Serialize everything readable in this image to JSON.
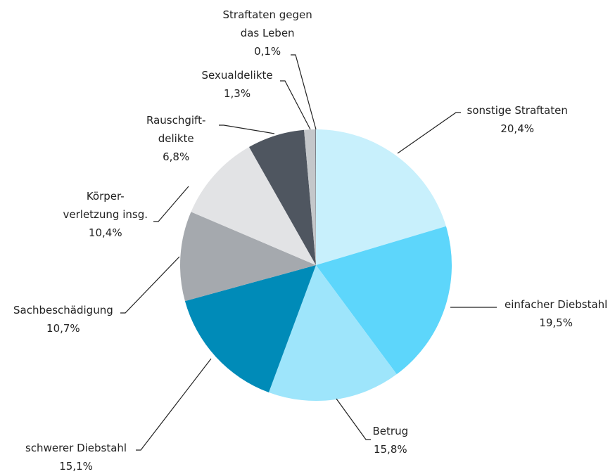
{
  "chart_data": {
    "type": "pie",
    "categories": [
      "sonstige Straftaten",
      "einfacher Diebstahl",
      "Betrug",
      "schwerer Diebstahl",
      "Sachbeschädigung",
      "Körper-\nverletzung insg.",
      "Rauschgift-\ndelikte",
      "Sexualdelikte",
      "Straftaten gegen\ndas Leben"
    ],
    "values": [
      20.4,
      19.5,
      15.8,
      15.1,
      10.7,
      10.4,
      6.8,
      1.3,
      0.1
    ],
    "value_labels": [
      "20,4%",
      "19,5%",
      "15,8%",
      "15,1%",
      "10,7%",
      "10,4%",
      "6,8%",
      "1,3%",
      "0,1%"
    ],
    "colors": [
      "#c8f0fc",
      "#5dd6fb",
      "#9ee5fb",
      "#008bb8",
      "#a5a9ae",
      "#e2e3e5",
      "#4f5660",
      "#c4c7ca",
      "#7a8088"
    ]
  }
}
